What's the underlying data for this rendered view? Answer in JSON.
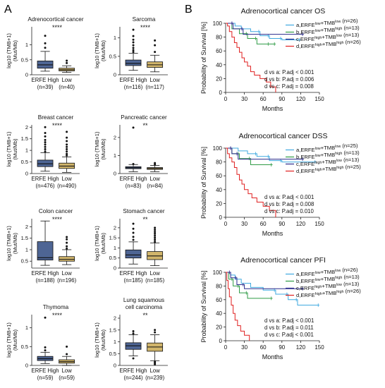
{
  "panel_labels": {
    "A": "A",
    "B": "B"
  },
  "chart_data": [
    {
      "type": "box",
      "id": "acc",
      "title": "Adrenocortical cancer",
      "ylabel": "log10 (TMB+1)\n(Mut/Mb)",
      "ylim": [
        0,
        1.6
      ],
      "yticks": [
        0,
        0.5,
        1
      ],
      "signif": "****",
      "groups": [
        {
          "label": "ERFE High",
          "n": "(n=39)",
          "color": "#4e6594",
          "stats": {
            "min": 0.12,
            "q1": 0.22,
            "median": 0.33,
            "q3": 0.46,
            "max": 0.78
          },
          "outliers": [
            0.9,
            1.05,
            1.3
          ]
        },
        {
          "label": "Low",
          "n": "(n=40)",
          "color": "#d1b56b",
          "stats": {
            "min": 0.08,
            "q1": 0.13,
            "median": 0.17,
            "q3": 0.22,
            "max": 0.3
          },
          "outliers": [
            0.39,
            0.47
          ]
        }
      ]
    },
    {
      "type": "box",
      "id": "sarc",
      "title": "Sarcoma",
      "ylabel": "log10 (TMB+1)\n(Mut/Mb)",
      "ylim": [
        0,
        1.3
      ],
      "yticks": [
        0,
        0.5,
        1
      ],
      "signif": "****",
      "groups": [
        {
          "label": "ERFE High",
          "n": "(n=116)",
          "color": "#4e6594",
          "stats": {
            "min": 0.12,
            "q1": 0.25,
            "median": 0.31,
            "q3": 0.4,
            "max": 0.58
          },
          "outliers": [
            0.62,
            0.67,
            0.73,
            0.8,
            0.88,
            0.95,
            1.05,
            1.22
          ]
        },
        {
          "label": "Low",
          "n": "(n=117)",
          "color": "#d1b56b",
          "stats": {
            "min": 0.08,
            "q1": 0.2,
            "median": 0.27,
            "q3": 0.35,
            "max": 0.53
          },
          "outliers": [
            0.62,
            0.8,
            0.93
          ]
        }
      ]
    },
    {
      "type": "box",
      "id": "brca",
      "title": "Breast cancer",
      "ylabel": "log10 (TMB+1)\n(Mut/Mb)",
      "ylim": [
        0,
        2.1
      ],
      "yticks": [
        0,
        0.5,
        1,
        1.5,
        2
      ],
      "signif": "****",
      "groups": [
        {
          "label": "ERFE High",
          "n": "(n=476)",
          "color": "#4e6594",
          "stats": {
            "min": 0.1,
            "q1": 0.3,
            "median": 0.42,
            "q3": 0.58,
            "max": 0.9
          },
          "outliers": [
            0.95,
            1.05,
            1.15,
            1.25,
            1.35,
            1.45,
            1.6,
            1.75,
            2.0
          ]
        },
        {
          "label": "Low",
          "n": "(n=490)",
          "color": "#d1b56b",
          "stats": {
            "min": 0.05,
            "q1": 0.22,
            "median": 0.32,
            "q3": 0.45,
            "max": 0.72
          },
          "outliers": [
            0.78,
            0.85,
            0.95,
            1.05,
            1.15,
            1.25,
            1.4,
            1.55,
            1.8
          ]
        }
      ]
    },
    {
      "type": "box",
      "id": "paad",
      "title": "Pancreatic cancer",
      "ylabel": "log10 (TMB+1)\n(Mut/Mb)",
      "ylim": [
        0,
        2.7
      ],
      "yticks": [
        0,
        1,
        2
      ],
      "signif": "**",
      "groups": [
        {
          "label": "ERFE High",
          "n": "(n=83)",
          "color": "#4e6594",
          "stats": {
            "min": 0.1,
            "q1": 0.27,
            "median": 0.32,
            "q3": 0.38,
            "max": 0.5
          },
          "outliers": [
            0.53,
            2.55
          ]
        },
        {
          "label": "Low",
          "n": "(n=84)",
          "color": "#d1b56b",
          "stats": {
            "min": 0.1,
            "q1": 0.23,
            "median": 0.28,
            "q3": 0.33,
            "max": 0.45
          },
          "outliers": [
            0.5,
            0.58
          ]
        }
      ]
    },
    {
      "type": "box",
      "id": "coad",
      "title": "Colon cancer",
      "ylabel": "log10 (TMB+1)\n(Mut/Mb)",
      "ylim": [
        0.2,
        2.35
      ],
      "yticks": [
        0.5,
        1,
        1.5,
        2
      ],
      "signif": "****",
      "groups": [
        {
          "label": "ERFE High",
          "n": "(n=188)",
          "color": "#4e6594",
          "stats": {
            "min": 0.32,
            "q1": 0.55,
            "median": 0.65,
            "q3": 1.35,
            "max": 2.25
          },
          "outliers": []
        },
        {
          "label": "Low",
          "n": "(n=196)",
          "color": "#d1b56b",
          "stats": {
            "min": 0.35,
            "q1": 0.5,
            "median": 0.58,
            "q3": 0.7,
            "max": 1.0
          },
          "outliers": [
            1.05,
            1.15,
            1.3,
            1.45,
            1.55
          ]
        }
      ]
    },
    {
      "type": "box",
      "id": "stad",
      "title": "Stomach cancer",
      "ylabel": "log10 (TMB+1)\n(Mut/Mb)",
      "ylim": [
        0,
        2.45
      ],
      "yticks": [
        0,
        0.5,
        1,
        1.5,
        2
      ],
      "signif": "**",
      "groups": [
        {
          "label": "ERFE High",
          "n": "(n=185)",
          "color": "#4e6594",
          "stats": {
            "min": 0.2,
            "q1": 0.5,
            "median": 0.65,
            "q3": 0.9,
            "max": 1.3
          },
          "outliers": [
            1.4,
            1.55,
            1.75,
            1.95,
            2.2
          ]
        },
        {
          "label": "Low",
          "n": "(n=185)",
          "color": "#d1b56b",
          "stats": {
            "min": 0.12,
            "q1": 0.42,
            "median": 0.6,
            "q3": 0.82,
            "max": 1.25
          },
          "outliers": [
            1.3,
            1.4,
            1.5,
            1.6,
            1.7,
            1.8,
            1.9,
            2.0
          ]
        }
      ]
    },
    {
      "type": "box",
      "id": "thym",
      "title": "Thymoma",
      "ylabel": "log10 (TMB+1)\n(Mut/Mb)",
      "ylim": [
        0,
        1.35
      ],
      "yticks": [
        0,
        0.5,
        1
      ],
      "signif": "****",
      "groups": [
        {
          "label": "ERFE High",
          "n": "(n=59)",
          "color": "#4e6594",
          "stats": {
            "min": 0.05,
            "q1": 0.13,
            "median": 0.18,
            "q3": 0.24,
            "max": 0.35
          },
          "outliers": [
            0.4,
            0.48,
            1.27
          ]
        },
        {
          "label": "Low",
          "n": "(n=59)",
          "color": "#d1b56b",
          "stats": {
            "min": 0.0,
            "q1": 0.06,
            "median": 0.1,
            "q3": 0.15,
            "max": 0.24
          },
          "outliers": [
            0.3,
            0.5
          ]
        }
      ]
    },
    {
      "type": "box",
      "id": "lusc",
      "title": "Lung squamous\ncell carcinoma",
      "ylabel": "log10 (TMB+1)\n(Mut/Mb)",
      "ylim": [
        0,
        2.15
      ],
      "yticks": [
        0,
        0.5,
        1,
        1.5,
        2
      ],
      "signif": "**",
      "groups": [
        {
          "label": "ERFE High",
          "n": "(n=244)",
          "color": "#4e6594",
          "stats": {
            "min": 0.4,
            "q1": 0.68,
            "median": 0.83,
            "q3": 0.96,
            "max": 1.3
          },
          "outliers": [
            1.35,
            1.45,
            0.3
          ]
        },
        {
          "label": "Low",
          "n": "(n=239)",
          "color": "#d1b56b",
          "stats": {
            "min": 0.2,
            "q1": 0.6,
            "median": 0.78,
            "q3": 0.95,
            "max": 1.3
          },
          "outliers": [
            1.4,
            1.5,
            0.1,
            0.15,
            0.05
          ]
        }
      ]
    },
    {
      "type": "survival",
      "id": "os",
      "title": "Adrenocortical cancer OS",
      "ylabel": "Probability of Survival [%]",
      "xlabel": "Months",
      "xlim": [
        0,
        150
      ],
      "ylim": [
        0,
        100
      ],
      "xticks": [
        0,
        30,
        60,
        90,
        120,
        150
      ],
      "yticks": [
        0,
        20,
        40,
        60,
        80,
        100
      ],
      "series": [
        {
          "letter": "a,",
          "g1": "ERFE",
          "s1": "low",
          "plus": "+",
          "g2": "TMB",
          "s2": "low",
          "n": "(n=26)",
          "color": "#3fa9e0",
          "points": [
            [
              0,
              100
            ],
            [
              8,
              100
            ],
            [
              15,
              96
            ],
            [
              25,
              92
            ],
            [
              40,
              88
            ],
            [
              55,
              82
            ],
            [
              70,
              78
            ],
            [
              90,
              76
            ],
            [
              120,
              76
            ]
          ]
        },
        {
          "letter": "b,",
          "g1": "ERFE",
          "s1": "low",
          "plus": "+",
          "g2": "TMB",
          "s2": "high",
          "n": "(n=13)",
          "color": "#2f9b45",
          "points": [
            [
              0,
              100
            ],
            [
              10,
              92
            ],
            [
              22,
              85
            ],
            [
              35,
              78
            ],
            [
              50,
              70
            ],
            [
              70,
              70
            ],
            [
              80,
              70
            ]
          ]
        },
        {
          "letter": "c,",
          "g1": "ERFE",
          "s1": "high",
          "plus": "+",
          "g2": "TMB",
          "s2": "low",
          "n": "(n=13)",
          "color": "#2a2a8c",
          "points": [
            [
              0,
              100
            ],
            [
              12,
              92
            ],
            [
              28,
              84
            ],
            [
              125,
              84
            ]
          ]
        },
        {
          "letter": "d,",
          "g1": "ERFE",
          "s1": "high",
          "plus": "+",
          "g2": "TMB",
          "s2": "high",
          "n": "(n=26)",
          "color": "#e02020",
          "points": [
            [
              0,
              100
            ],
            [
              3,
              96
            ],
            [
              6,
              88
            ],
            [
              10,
              80
            ],
            [
              14,
              72
            ],
            [
              18,
              65
            ],
            [
              22,
              58
            ],
            [
              26,
              50
            ],
            [
              30,
              44
            ],
            [
              35,
              38
            ],
            [
              40,
              30
            ],
            [
              46,
              25
            ],
            [
              55,
              20
            ],
            [
              65,
              15
            ],
            [
              72,
              8
            ],
            [
              80,
              0
            ]
          ]
        }
      ],
      "stats": [
        "d vs a: P.adj < 0.001",
        "d vs b: P.adj = 0.006",
        "d vs c: P.adj = 0.008"
      ]
    },
    {
      "type": "survival",
      "id": "dss",
      "title": "Adrenocortical cancer DSS",
      "ylabel": "Probability of Survival [%]",
      "xlabel": "Months",
      "xlim": [
        0,
        150
      ],
      "ylim": [
        0,
        100
      ],
      "xticks": [
        0,
        30,
        60,
        90,
        120,
        150
      ],
      "yticks": [
        0,
        20,
        40,
        60,
        80,
        100
      ],
      "series": [
        {
          "letter": "a,",
          "g1": "ERFE",
          "s1": "low",
          "plus": "+",
          "g2": "TMB",
          "s2": "low",
          "n": "(n=25)",
          "color": "#3fa9e0",
          "points": [
            [
              0,
              100
            ],
            [
              12,
              100
            ],
            [
              20,
              96
            ],
            [
              35,
              92
            ],
            [
              50,
              88
            ],
            [
              70,
              82
            ],
            [
              90,
              80
            ],
            [
              145,
              80
            ]
          ]
        },
        {
          "letter": "b,",
          "g1": "ERFE",
          "s1": "low",
          "plus": "+",
          "g2": "TMB",
          "s2": "high",
          "n": "(n=13)",
          "color": "#2f9b45",
          "points": [
            [
              0,
              100
            ],
            [
              10,
              92
            ],
            [
              22,
              85
            ],
            [
              40,
              76
            ],
            [
              75,
              76
            ]
          ]
        },
        {
          "letter": "c,",
          "g1": "ERFE",
          "s1": "high",
          "plus": "+",
          "g2": "TMB",
          "s2": "low",
          "n": "(n=13)",
          "color": "#2a2a8c",
          "points": [
            [
              0,
              100
            ],
            [
              10,
              92
            ],
            [
              20,
              84
            ],
            [
              125,
              84
            ]
          ]
        },
        {
          "letter": "d,",
          "g1": "ERFE",
          "s1": "high",
          "plus": "+",
          "g2": "TMB",
          "s2": "high",
          "n": "(n=25)",
          "color": "#e02020",
          "points": [
            [
              0,
              100
            ],
            [
              3,
              92
            ],
            [
              6,
              86
            ],
            [
              10,
              80
            ],
            [
              14,
              72
            ],
            [
              18,
              62
            ],
            [
              22,
              54
            ],
            [
              26,
              48
            ],
            [
              30,
              40
            ],
            [
              36,
              34
            ],
            [
              42,
              28
            ],
            [
              50,
              22
            ],
            [
              60,
              16
            ],
            [
              70,
              10
            ],
            [
              80,
              0
            ]
          ]
        }
      ],
      "stats": [
        "d vs a: P.adj < 0.001",
        "d vs b: P.adj = 0.008",
        "d vs c: P.adj = 0.010"
      ]
    },
    {
      "type": "survival",
      "id": "pfi",
      "title": "Adrenocortical cancer PFI",
      "ylabel": "Probability of Survival [%]",
      "xlabel": "Months",
      "xlim": [
        0,
        150
      ],
      "ylim": [
        0,
        100
      ],
      "xticks": [
        0,
        30,
        60,
        90,
        120,
        150
      ],
      "yticks": [
        0,
        20,
        40,
        60,
        80,
        100
      ],
      "series": [
        {
          "letter": "a,",
          "g1": "ERFE",
          "s1": "low",
          "plus": "+",
          "g2": "TMB",
          "s2": "low",
          "n": "(n=26)",
          "color": "#3fa9e0",
          "points": [
            [
              0,
              100
            ],
            [
              8,
              96
            ],
            [
              15,
              90
            ],
            [
              25,
              84
            ],
            [
              40,
              78
            ],
            [
              60,
              74
            ],
            [
              80,
              68
            ],
            [
              100,
              60
            ],
            [
              115,
              52
            ],
            [
              150,
              52
            ]
          ]
        },
        {
          "letter": "b,",
          "g1": "ERFE",
          "s1": "low",
          "plus": "+",
          "g2": "TMB",
          "s2": "high",
          "n": "(n=13)",
          "color": "#2f9b45",
          "points": [
            [
              0,
              100
            ],
            [
              5,
              90
            ],
            [
              12,
              80
            ],
            [
              22,
              70
            ],
            [
              35,
              62
            ],
            [
              75,
              62
            ]
          ]
        },
        {
          "letter": "c,",
          "g1": "ERFE",
          "s1": "high",
          "plus": "+",
          "g2": "TMB",
          "s2": "low",
          "n": "(n=13)",
          "color": "#2a2a8c",
          "points": [
            [
              0,
              100
            ],
            [
              8,
              92
            ],
            [
              18,
              82
            ],
            [
              30,
              76
            ],
            [
              125,
              76
            ]
          ]
        },
        {
          "letter": "d,",
          "g1": "ERFE",
          "s1": "high",
          "plus": "+",
          "g2": "TMB",
          "s2": "high",
          "n": "(n=26)",
          "color": "#e02020",
          "points": [
            [
              0,
              100
            ],
            [
              2,
              88
            ],
            [
              4,
              76
            ],
            [
              6,
              64
            ],
            [
              9,
              52
            ],
            [
              12,
              40
            ],
            [
              15,
              30
            ],
            [
              19,
              22
            ],
            [
              24,
              14
            ],
            [
              30,
              8
            ],
            [
              38,
              0
            ]
          ]
        }
      ],
      "stats": [
        "d vs a: P.adj < 0.001",
        "d vs b: P.adj = 0.011",
        "d vs c: P.adj < 0.001"
      ]
    }
  ]
}
